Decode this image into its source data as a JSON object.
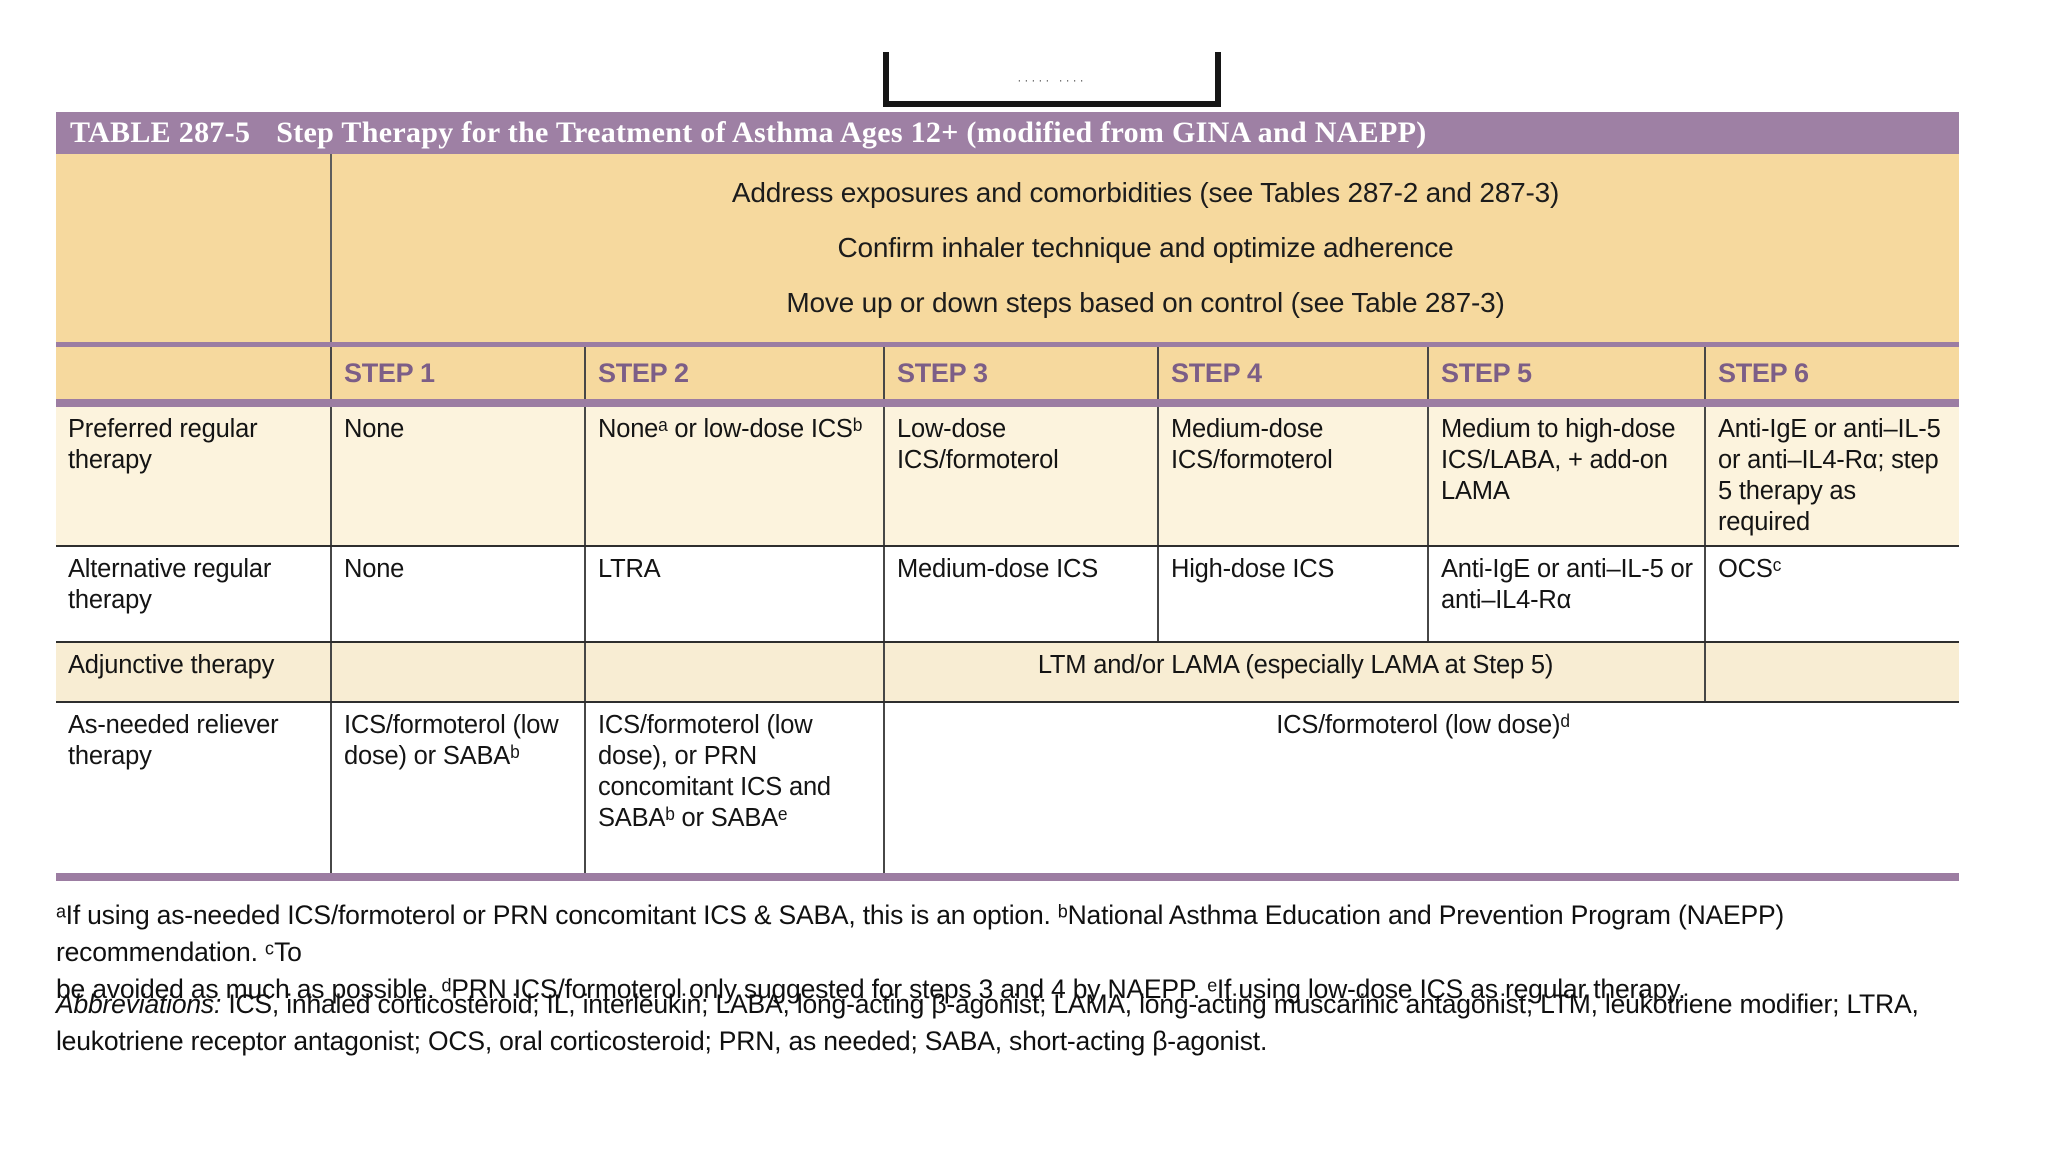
{
  "page": {
    "clipped_text_fragment": "····· ····"
  },
  "colors": {
    "title_bar_purple": "#9e80a4",
    "rule_purple": "#9c7da2",
    "header_tan": "#f6d99e",
    "row_cream": "#fcf3dd",
    "row_adjunctive_cream": "#f8edd3",
    "step_label_purple": "#7c5e87"
  },
  "table": {
    "title_label": "TABLE 287-5",
    "title_text": "Step Therapy for the Treatment of Asthma Ages 12+ (modified from GINA and NAEPP)",
    "header_lines": [
      "Address exposures and comorbidities (see Tables 287-2 and 287-3)",
      "Confirm inhaler technique and optimize adherence",
      "Move up or down steps based on control (see Table 287-3)"
    ],
    "step_headers": [
      "STEP 1",
      "STEP 2",
      "STEP 3",
      "STEP 4",
      "STEP 5",
      "STEP 6"
    ],
    "rows": {
      "preferred": {
        "label": "Preferred regular therapy",
        "cells": [
          "None",
          "Noneᵃ or low-dose ICSᵇ",
          "Low-dose ICS/formoterol",
          "Medium-dose ICS/formoterol",
          "Medium to high-dose ICS/LABA, + add-on LAMA",
          "Anti-IgE or anti–IL-5 or anti–IL4-Rα; step 5 therapy as required"
        ]
      },
      "alternative": {
        "label": "Alternative regular therapy",
        "cells": [
          "None",
          "LTRA",
          "Medium-dose ICS",
          "High-dose ICS",
          "Anti-IgE or anti–IL-5 or anti–IL4-Rα",
          "OCSᶜ"
        ]
      },
      "adjunctive": {
        "label": "Adjunctive therapy",
        "step1": "",
        "step2": "",
        "merged_steps_3_5": "LTM and/or LAMA (especially LAMA at Step 5)",
        "step6": ""
      },
      "as_needed": {
        "label": "As-needed reliever therapy",
        "step1": "ICS/formoterol (low dose) or SABAᵇ",
        "step2": "ICS/formoterol (low dose), or PRN concomitant ICS and SABAᵇ or SABAᵉ",
        "merged_steps_3_6": "ICS/formoterol (low dose)ᵈ"
      }
    }
  },
  "footnotes": {
    "line1": "ᵃIf using as-needed ICS/formoterol or PRN concomitant ICS & SABA, this is an option. ᵇNational Asthma Education and Prevention Program (NAEPP) recommendation. ᶜTo",
    "line2": "be avoided as much as possible. ᵈPRN ICS/formoterol only suggested for steps 3 and 4 by NAEPP. ᵉIf using low-dose ICS as regular therapy."
  },
  "abbreviations": {
    "label": "Abbreviations:",
    "line1_rest": "ICS, inhaled corticosteroid; IL, interleukin; LABA, long-acting β-agonist; LAMA, long-acting muscarinic antagonist; LTM, leukotriene modifier; LTRA,",
    "line2": "leukotriene receptor antagonist; OCS, oral corticosteroid; PRN, as needed; SABA, short-acting β-agonist."
  }
}
